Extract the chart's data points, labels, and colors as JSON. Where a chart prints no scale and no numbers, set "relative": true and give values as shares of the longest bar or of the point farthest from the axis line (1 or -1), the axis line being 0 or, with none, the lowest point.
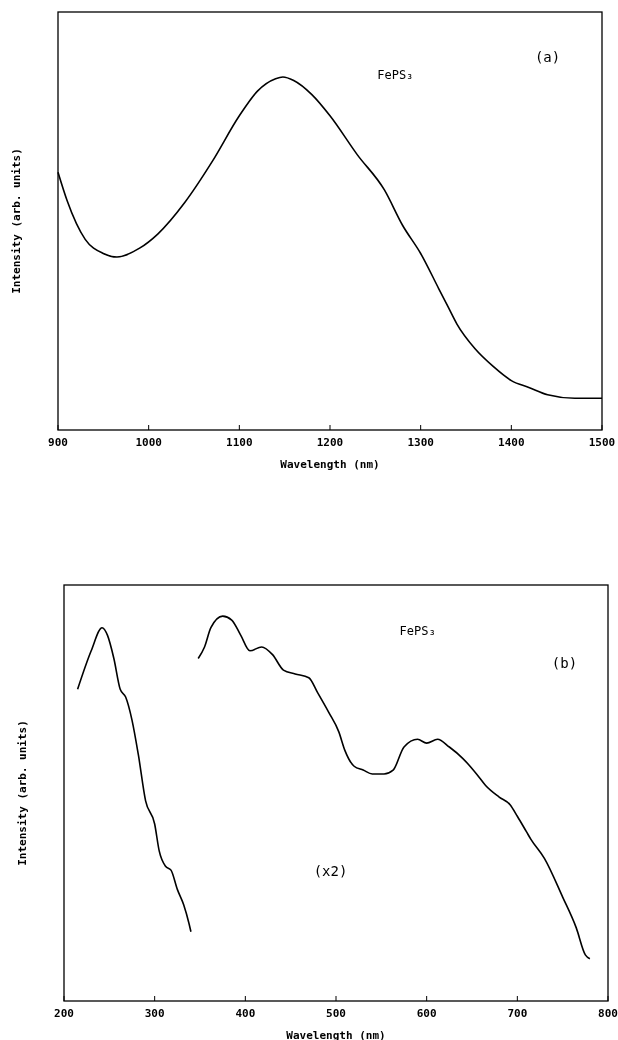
{
  "chart_data": [
    {
      "type": "line",
      "relative": true,
      "xlabel": "Wavelength (nm)",
      "ylabel": "Intensity (arb. units)",
      "xlim": [
        900,
        1500
      ],
      "xticks": [
        900,
        1000,
        1100,
        1200,
        1300,
        1400,
        1500
      ],
      "tick_labels": "x",
      "annotations": [
        "FePS₃",
        "(a)"
      ],
      "series": [
        {
          "color": "#000000",
          "x": [
            900,
            910,
            930,
            950,
            965,
            990,
            1010,
            1040,
            1070,
            1100,
            1120,
            1140,
            1148,
            1160,
            1180,
            1200,
            1230,
            1260,
            1280,
            1300,
            1320,
            1330,
            1340,
            1360,
            1380,
            1400,
            1420,
            1440,
            1470,
            1500
          ],
          "values": [
            0.73,
            0.65,
            0.54,
            0.5,
            0.49,
            0.515,
            0.555,
            0.645,
            0.76,
            0.89,
            0.96,
            0.995,
            1,
            0.99,
            0.95,
            0.89,
            0.78,
            0.68,
            0.58,
            0.5,
            0.4,
            0.35,
            0.3,
            0.23,
            0.18,
            0.14,
            0.12,
            0.1,
            0.09,
            0.09
          ]
        }
      ]
    },
    {
      "type": "line",
      "relative": true,
      "xlabel": "Wavelength (nm)",
      "ylabel": "Intensity (arb. units)",
      "xlim": [
        200,
        800
      ],
      "xticks": [
        200,
        300,
        400,
        500,
        600,
        700,
        800
      ],
      "tick_labels": "x",
      "annotations": [
        "FePS₃",
        "(b)",
        "(x2)"
      ],
      "series": [
        {
          "color": "#000000",
          "x": [
            215,
            230,
            242,
            248,
            255,
            262,
            268,
            275,
            282,
            290,
            300,
            305,
            312,
            318,
            325,
            332,
            338,
            340
          ],
          "values": [
            0.81,
            0.91,
            0.97,
            0.95,
            0.89,
            0.81,
            0.79,
            0.73,
            0.64,
            0.52,
            0.46,
            0.39,
            0.35,
            0.34,
            0.29,
            0.25,
            0.2,
            0.18
          ]
        },
        {
          "color": "#000000",
          "x": [
            348,
            355,
            362,
            375,
            385,
            395,
            405,
            418,
            430,
            442,
            455,
            470,
            480,
            492,
            503,
            510,
            520,
            530,
            540,
            553,
            563,
            575,
            590,
            600,
            612,
            625,
            640,
            655,
            665,
            680,
            692,
            700,
            710,
            715,
            730,
            750,
            765,
            775,
            780
          ],
          "values": [
            0.89,
            0.92,
            0.97,
            1,
            0.99,
            0.95,
            0.91,
            0.92,
            0.9,
            0.86,
            0.85,
            0.84,
            0.8,
            0.75,
            0.7,
            0.65,
            0.61,
            0.6,
            0.59,
            0.59,
            0.6,
            0.66,
            0.68,
            0.67,
            0.68,
            0.66,
            0.63,
            0.59,
            0.56,
            0.53,
            0.51,
            0.48,
            0.44,
            0.42,
            0.37,
            0.27,
            0.19,
            0.12,
            0.11
          ]
        }
      ]
    }
  ]
}
